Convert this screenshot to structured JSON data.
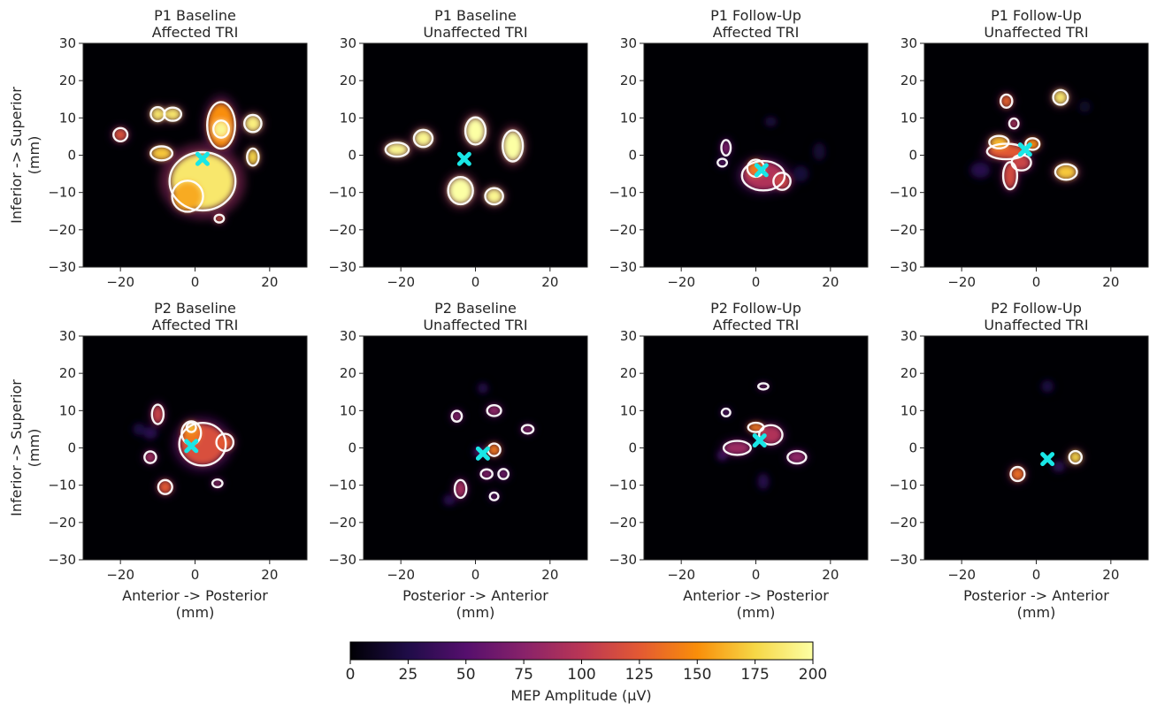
{
  "chart_data": {
    "type": "heatmap",
    "xlim": [
      -30,
      30
    ],
    "ylim": [
      -30,
      30
    ],
    "xticks": [
      -20,
      0,
      20
    ],
    "yticks": [
      -30,
      -20,
      -10,
      0,
      10,
      20,
      30
    ],
    "ylabel_lines": [
      "Inferior -> Superior",
      "(mm)"
    ],
    "colorbar": {
      "label": "MEP Amplitude (μV)",
      "min": 0,
      "max": 200,
      "ticks": [
        0,
        25,
        50,
        75,
        100,
        125,
        150,
        175,
        200
      ],
      "colors": [
        "#000004",
        "#1f0c48",
        "#550f6d",
        "#88226a",
        "#ba3655",
        "#e35933",
        "#f98e09",
        "#f6d746",
        "#fcffa4"
      ]
    },
    "panels": [
      {
        "title_lines": [
          "P1 Baseline",
          "Affected TRI"
        ],
        "xlabel_lines": [],
        "marker": [
          2,
          -1
        ],
        "blobs": [
          {
            "x": 2,
            "y": -7,
            "rx": 8.5,
            "ry": 7.5,
            "v": 185
          },
          {
            "x": -2,
            "y": -11,
            "rx": 4,
            "ry": 4,
            "v": 160
          },
          {
            "x": 7,
            "y": 8,
            "rx": 3.6,
            "ry": 6,
            "v": 150
          },
          {
            "x": 7,
            "y": 7,
            "rx": 2,
            "ry": 2.2,
            "v": 195
          },
          {
            "x": -10,
            "y": 11,
            "rx": 1.8,
            "ry": 1.8,
            "v": 185
          },
          {
            "x": -6,
            "y": 11,
            "rx": 2.2,
            "ry": 1.7,
            "v": 185
          },
          {
            "x": -20,
            "y": 5.5,
            "rx": 1.8,
            "ry": 1.7,
            "v": 120
          },
          {
            "x": -9,
            "y": 0.5,
            "rx": 2.8,
            "ry": 1.8,
            "v": 170
          },
          {
            "x": 15.5,
            "y": 8.5,
            "rx": 2.2,
            "ry": 2.2,
            "v": 190
          },
          {
            "x": 15.5,
            "y": -0.5,
            "rx": 1.5,
            "ry": 2.2,
            "v": 175
          },
          {
            "x": 6.5,
            "y": -17,
            "rx": 1.2,
            "ry": 1,
            "v": 120
          }
        ]
      },
      {
        "title_lines": [
          "P1 Baseline",
          "Unaffected TRI"
        ],
        "xlabel_lines": [],
        "marker": [
          -3,
          -1
        ],
        "blobs": [
          {
            "x": -21,
            "y": 1.5,
            "rx": 3,
            "ry": 1.8,
            "v": 195
          },
          {
            "x": -14,
            "y": 4.5,
            "rx": 2.4,
            "ry": 2.2,
            "v": 195
          },
          {
            "x": 0,
            "y": 6.5,
            "rx": 2.6,
            "ry": 3.5,
            "v": 200
          },
          {
            "x": 10,
            "y": 2.5,
            "rx": 2.6,
            "ry": 4,
            "v": 200
          },
          {
            "x": -4,
            "y": -9.5,
            "rx": 3.2,
            "ry": 3.5,
            "v": 200
          },
          {
            "x": 5,
            "y": -11,
            "rx": 2.3,
            "ry": 2.1,
            "v": 195
          }
        ]
      },
      {
        "title_lines": [
          "P1 Follow-Up",
          "Affected TRI"
        ],
        "xlabel_lines": [],
        "marker": [
          1.5,
          -4
        ],
        "blobs": [
          {
            "x": 2,
            "y": -5.5,
            "rx": 5.5,
            "ry": 3.8,
            "v": 95
          },
          {
            "x": 0,
            "y": -3.5,
            "rx": 2.2,
            "ry": 2.2,
            "v": 140
          },
          {
            "x": 7,
            "y": -7,
            "rx": 2.2,
            "ry": 2.2,
            "v": 110
          },
          {
            "x": -8,
            "y": 2,
            "rx": 1.2,
            "ry": 2,
            "v": 70
          },
          {
            "x": -9,
            "y": -2,
            "rx": 1.2,
            "ry": 1,
            "v": 55
          },
          {
            "x": 4,
            "y": 9,
            "rx": 1.5,
            "ry": 1.2,
            "v": 22
          },
          {
            "x": 17,
            "y": 1,
            "rx": 1.5,
            "ry": 2.2,
            "v": 18
          },
          {
            "x": 12,
            "y": -5,
            "rx": 2,
            "ry": 2,
            "v": 20
          }
        ]
      },
      {
        "title_lines": [
          "P1 Follow-Up",
          "Unaffected TRI"
        ],
        "xlabel_lines": [],
        "marker": [
          -3,
          1.5
        ],
        "blobs": [
          {
            "x": -8,
            "y": 1,
            "rx": 5,
            "ry": 2,
            "v": 125
          },
          {
            "x": -10,
            "y": 3.5,
            "rx": 2.5,
            "ry": 1.6,
            "v": 165
          },
          {
            "x": -1,
            "y": 3,
            "rx": 1.8,
            "ry": 1.5,
            "v": 150
          },
          {
            "x": -7,
            "y": -5.5,
            "rx": 1.8,
            "ry": 3.5,
            "v": 115
          },
          {
            "x": -4,
            "y": -2,
            "rx": 2.5,
            "ry": 2,
            "v": 110
          },
          {
            "x": -8,
            "y": 14.5,
            "rx": 1.5,
            "ry": 1.7,
            "v": 130
          },
          {
            "x": -6,
            "y": 8.5,
            "rx": 1.2,
            "ry": 1.3,
            "v": 95
          },
          {
            "x": 6.5,
            "y": 15.5,
            "rx": 1.9,
            "ry": 1.9,
            "v": 185
          },
          {
            "x": 8,
            "y": -4.5,
            "rx": 2.8,
            "ry": 2,
            "v": 170
          },
          {
            "x": -15,
            "y": -4,
            "rx": 2.5,
            "ry": 2,
            "v": 28
          },
          {
            "x": 13,
            "y": 13,
            "rx": 1.5,
            "ry": 1.5,
            "v": 14
          }
        ]
      },
      {
        "title_lines": [
          "P2 Baseline",
          "Affected TRI"
        ],
        "xlabel_lines": [
          "Anterior -> Posterior",
          "(mm)"
        ],
        "marker": [
          -1,
          0.5
        ],
        "blobs": [
          {
            "x": 2,
            "y": 1,
            "rx": 6,
            "ry": 5.5,
            "v": 118
          },
          {
            "x": -1,
            "y": 4,
            "rx": 2.5,
            "ry": 3,
            "v": 140
          },
          {
            "x": -1,
            "y": 5.5,
            "rx": 1.2,
            "ry": 1.2,
            "v": 170
          },
          {
            "x": 8,
            "y": 1.5,
            "rx": 2.2,
            "ry": 2.2,
            "v": 125
          },
          {
            "x": -10,
            "y": 9,
            "rx": 1.5,
            "ry": 2.5,
            "v": 110
          },
          {
            "x": -12,
            "y": -2.5,
            "rx": 1.5,
            "ry": 1.5,
            "v": 90
          },
          {
            "x": -8,
            "y": -10.5,
            "rx": 1.8,
            "ry": 1.8,
            "v": 125
          },
          {
            "x": 6,
            "y": -9.5,
            "rx": 1.3,
            "ry": 1,
            "v": 80
          },
          {
            "x": -15,
            "y": 5,
            "rx": 1.5,
            "ry": 1.5,
            "v": 24
          },
          {
            "x": -12,
            "y": 4,
            "rx": 1.8,
            "ry": 1.5,
            "v": 30
          }
        ]
      },
      {
        "title_lines": [
          "P2 Baseline",
          "Unaffected TRI"
        ],
        "xlabel_lines": [
          "Posterior -> Anterior",
          "(mm)"
        ],
        "marker": [
          2,
          -1.5
        ],
        "blobs": [
          {
            "x": 5,
            "y": -0.5,
            "rx": 1.6,
            "ry": 1.6,
            "v": 140
          },
          {
            "x": -5,
            "y": 8.5,
            "rx": 1.3,
            "ry": 1.4,
            "v": 75
          },
          {
            "x": 5,
            "y": 10,
            "rx": 1.8,
            "ry": 1.4,
            "v": 80
          },
          {
            "x": 14,
            "y": 5,
            "rx": 1.5,
            "ry": 1.1,
            "v": 75
          },
          {
            "x": -4,
            "y": -11,
            "rx": 1.5,
            "ry": 2.3,
            "v": 90
          },
          {
            "x": 3,
            "y": -7,
            "rx": 1.5,
            "ry": 1.2,
            "v": 75
          },
          {
            "x": 7.5,
            "y": -7,
            "rx": 1.3,
            "ry": 1.3,
            "v": 65
          },
          {
            "x": 5,
            "y": -13,
            "rx": 1.1,
            "ry": 1,
            "v": 60
          },
          {
            "x": 2,
            "y": 16,
            "rx": 1.3,
            "ry": 1.3,
            "v": 28
          },
          {
            "x": -7,
            "y": -14,
            "rx": 1.5,
            "ry": 1.3,
            "v": 30
          },
          {
            "x": 1,
            "y": -1,
            "rx": 1.3,
            "ry": 1.3,
            "v": 45
          }
        ]
      },
      {
        "title_lines": [
          "P2 Follow-Up",
          "Affected TRI"
        ],
        "xlabel_lines": [
          "Anterior -> Posterior",
          "(mm)"
        ],
        "marker": [
          1,
          2
        ],
        "blobs": [
          {
            "x": -5,
            "y": 0,
            "rx": 3.5,
            "ry": 1.8,
            "v": 85
          },
          {
            "x": 4,
            "y": 3.5,
            "rx": 3,
            "ry": 2.5,
            "v": 95
          },
          {
            "x": 0,
            "y": 5.5,
            "rx": 2,
            "ry": 1.2,
            "v": 140
          },
          {
            "x": 11,
            "y": -2.5,
            "rx": 2.4,
            "ry": 1.6,
            "v": 80
          },
          {
            "x": -8,
            "y": 9.5,
            "rx": 1.1,
            "ry": 1,
            "v": 55
          },
          {
            "x": 2,
            "y": 16.5,
            "rx": 1.3,
            "ry": 0.8,
            "v": 65
          },
          {
            "x": 2,
            "y": -9,
            "rx": 1.4,
            "ry": 2,
            "v": 28
          },
          {
            "x": -9,
            "y": -2,
            "rx": 1.3,
            "ry": 1.3,
            "v": 40
          }
        ]
      },
      {
        "title_lines": [
          "P2 Follow-Up",
          "Unaffected TRI"
        ],
        "xlabel_lines": [
          "Posterior -> Anterior",
          "(mm)"
        ],
        "marker": [
          3,
          -3
        ],
        "blobs": [
          {
            "x": 10.5,
            "y": -2.5,
            "rx": 1.6,
            "ry": 1.6,
            "v": 175
          },
          {
            "x": -5,
            "y": -7,
            "rx": 1.8,
            "ry": 1.8,
            "v": 135
          },
          {
            "x": 6,
            "y": -5,
            "rx": 1.5,
            "ry": 1.3,
            "v": 32
          },
          {
            "x": 3,
            "y": 16.5,
            "rx": 1.5,
            "ry": 1.5,
            "v": 24
          }
        ]
      }
    ]
  }
}
